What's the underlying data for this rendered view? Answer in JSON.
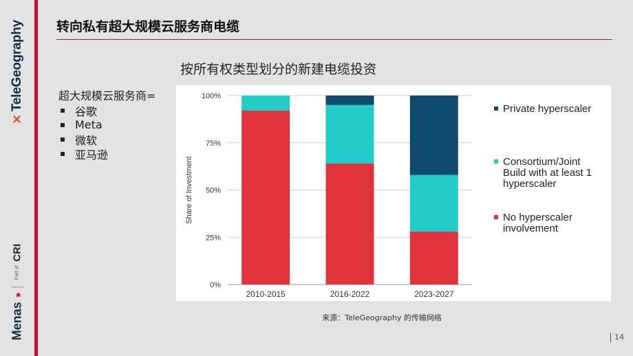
{
  "sidebar": {
    "brand": "TeleGeography",
    "company": "Menas",
    "part_of": "Part of",
    "group": "CRI"
  },
  "page": {
    "title": "转向私有超大规模云服务商电缆",
    "page_number": "14",
    "source": "来源：TeleGeography 的传输网络"
  },
  "hyperscalers": {
    "heading": "超大规模云服务商=",
    "items": [
      "谷歌",
      "Meta",
      "微软",
      "亚马逊"
    ]
  },
  "colors": {
    "private": "#0e4a6e",
    "consortium": "#22ccc8",
    "none": "#e0343d",
    "accent": "#c8102e"
  },
  "chart_data": {
    "type": "bar",
    "stacked": true,
    "title": "按所有权类型划分的新建电缆投资",
    "ylabel": "Share of Investment",
    "xlabel": "",
    "categories": [
      "2010-2015",
      "2016-2022",
      "2023-2027"
    ],
    "yticks": [
      "0%",
      "25%",
      "50%",
      "75%",
      "100%"
    ],
    "ylim": [
      0,
      100
    ],
    "legend_position": "right",
    "series": [
      {
        "name": "No hyperscaler involvement",
        "color": "#e0343d",
        "values": [
          92,
          64,
          28
        ]
      },
      {
        "name": "Consortium/Joint Build with at least 1 hyperscaler",
        "color": "#22ccc8",
        "values": [
          8,
          31,
          30
        ]
      },
      {
        "name": "Private hyperscaler",
        "color": "#0e4a6e",
        "values": [
          0,
          5,
          42
        ]
      }
    ],
    "legend": [
      {
        "label_lines": [
          "Private hyperscaler"
        ],
        "color": "#0e4a6e"
      },
      {
        "label_lines": [
          "Consortium/Joint",
          "Build with at least 1",
          "hyperscaler"
        ],
        "color": "#22ccc8"
      },
      {
        "label_lines": [
          "No hyperscaler",
          "involvement"
        ],
        "color": "#e0343d"
      }
    ]
  }
}
